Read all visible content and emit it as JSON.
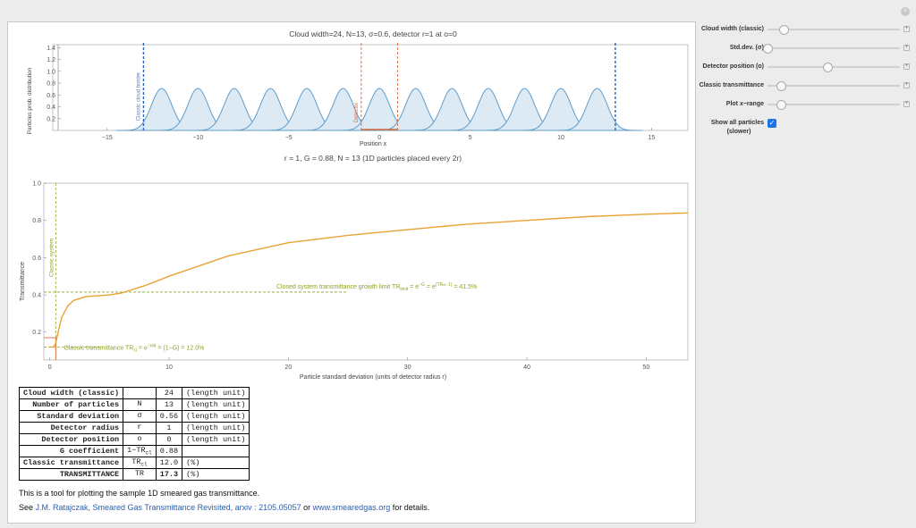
{
  "top_plot": {
    "title": "Cloud width=24, N=13, σ=0.6, detector r=1 at o=0",
    "xlabel": "Position x",
    "ylabel": "Particles prob. distribution",
    "border_label": "Classic cloud border",
    "detector_label": "Detector",
    "x_ticks": [
      "−15",
      "−10",
      "−5",
      "0",
      "5",
      "10",
      "15"
    ],
    "y_ticks": [
      "0.2",
      "0.4",
      "0.6",
      "0.8",
      "1.0",
      "1.2",
      "1.4"
    ]
  },
  "bottom_plot": {
    "title": "r = 1, G = 0.88, N = 13 (1D particles placed every 2r)",
    "xlabel": "Particle standard deviation (units of detector radius r)",
    "ylabel": "Transmittance",
    "classic_system_label": "Classic system",
    "closed_limit_label": "Closed system transmittance growth limit TR",
    "closed_limit_sub": "limit",
    "closed_limit_eq": " = e",
    "closed_limit_exp1": "−G",
    "closed_limit_eq2": " = e",
    "closed_limit_exp2": "(TR",
    "closed_limit_exp2_sub": "cl",
    "closed_limit_exp2_tail": "−1)",
    "closed_limit_value": " = 41.5%",
    "classic_tr_label": "Classic transmittance TR",
    "classic_tr_sub": "cl",
    "classic_tr_eq": " = e",
    "classic_tr_exp": "−nld",
    "classic_tr_value": " = (1−G) = 12.0%",
    "x_ticks": [
      "0",
      "10",
      "20",
      "30",
      "40",
      "50"
    ],
    "y_ticks": [
      "0.2",
      "0.4",
      "0.6",
      "0.8",
      "1.0"
    ]
  },
  "controls": {
    "cloud_width_label": "Cloud width (classic)",
    "std_dev_label": "Std.dev. (σ)",
    "detector_position_label": "Detector position (o)",
    "classic_transmittance_label": "Classic transmittance",
    "plot_xrange_label": "Plot x−range",
    "show_all_label_1": "Show all particles",
    "show_all_label_2": "(slower)",
    "plus": "+",
    "check": "✓",
    "close": "×",
    "cloud_width_fraction": 0.12,
    "std_dev_fraction": 0.0,
    "detector_position_fraction": 0.45,
    "classic_transmittance_fraction": 0.1,
    "plot_xrange_fraction": 0.1
  },
  "table": {
    "rows": [
      {
        "name": "Cloud width (classic)",
        "sym": "",
        "sym_sub": "",
        "val": "24",
        "unit": "(length unit)",
        "bold": false
      },
      {
        "name": "Number of particles",
        "sym": "N",
        "sym_sub": "",
        "val": "13",
        "unit": "(length unit)",
        "bold": false
      },
      {
        "name": "Standard deviation",
        "sym": "σ",
        "sym_sub": "",
        "val": "0.56",
        "unit": "(length unit)",
        "bold": false
      },
      {
        "name": "Detector radius",
        "sym": "r",
        "sym_sub": "",
        "val": "1",
        "unit": "(length unit)",
        "bold": false
      },
      {
        "name": "Detector position",
        "sym": "o",
        "sym_sub": "",
        "val": "0",
        "unit": "(length unit)",
        "bold": false
      },
      {
        "name": "G coefficient",
        "sym": "1−TR",
        "sym_sub": "cl",
        "val": "0.88",
        "unit": "",
        "bold": false
      },
      {
        "name": "Classic transmittance",
        "sym": "TR",
        "sym_sub": "cl",
        "val": "12.0",
        "unit": "(%)",
        "bold": false
      },
      {
        "name": "TRANSMITTANCE",
        "sym": "TR",
        "sym_sub": "",
        "val": "17.3",
        "unit": "(%)",
        "bold": true
      }
    ]
  },
  "description": "This is a tool for plotting the sample 1D smeared gas transmittance.",
  "reference": {
    "see": "See ",
    "paper_link": "J.M. Ratajczak, Smeared Gas Transmittance Revisited, arxiv : 2105.05057",
    "or": " or ",
    "site_link": "www.smearedgas.org",
    "tail": " for details."
  },
  "chart_data": [
    {
      "type": "area",
      "title": "Cloud width=24, N=13, σ=0.6, detector r=1 at o=0",
      "xlabel": "Position x",
      "ylabel": "Particles prob. distribution",
      "xlim": [
        -18,
        17
      ],
      "ylim": [
        0,
        1.45
      ],
      "particle_centers": [
        -12,
        -10,
        -8,
        -6,
        -4,
        -2,
        0,
        2,
        4,
        6,
        8,
        10,
        12
      ],
      "sigma": 0.56,
      "classic_cloud_border": [
        -13,
        13
      ],
      "detector_range": [
        -1,
        1
      ],
      "series": [
        {
          "values": "gaussian bumps, peak ≈ 0.71"
        }
      ]
    },
    {
      "type": "line",
      "title": "r = 1, G = 0.88, N = 13 (1D particles placed every 2r)",
      "xlabel": "Particle standard deviation (units of detector radius r)",
      "ylabel": "Transmittance",
      "xlim": [
        -0.5,
        53.5
      ],
      "ylim": [
        0.05,
        1.0
      ],
      "x": [
        0,
        0.3,
        0.5,
        0.7,
        1.0,
        1.5,
        2,
        3,
        4,
        5,
        6,
        8,
        10,
        15,
        20,
        25,
        30,
        35,
        40,
        45,
        50,
        53.5
      ],
      "y": [
        0.12,
        0.12,
        0.14,
        0.2,
        0.28,
        0.34,
        0.37,
        0.39,
        0.395,
        0.4,
        0.41,
        0.45,
        0.5,
        0.61,
        0.68,
        0.72,
        0.75,
        0.78,
        0.8,
        0.82,
        0.833,
        0.84
      ],
      "reference_lines": {
        "closed_limit": 0.415,
        "classic_transmittance": 0.12,
        "classic_system_x": 0.5
      }
    }
  ]
}
